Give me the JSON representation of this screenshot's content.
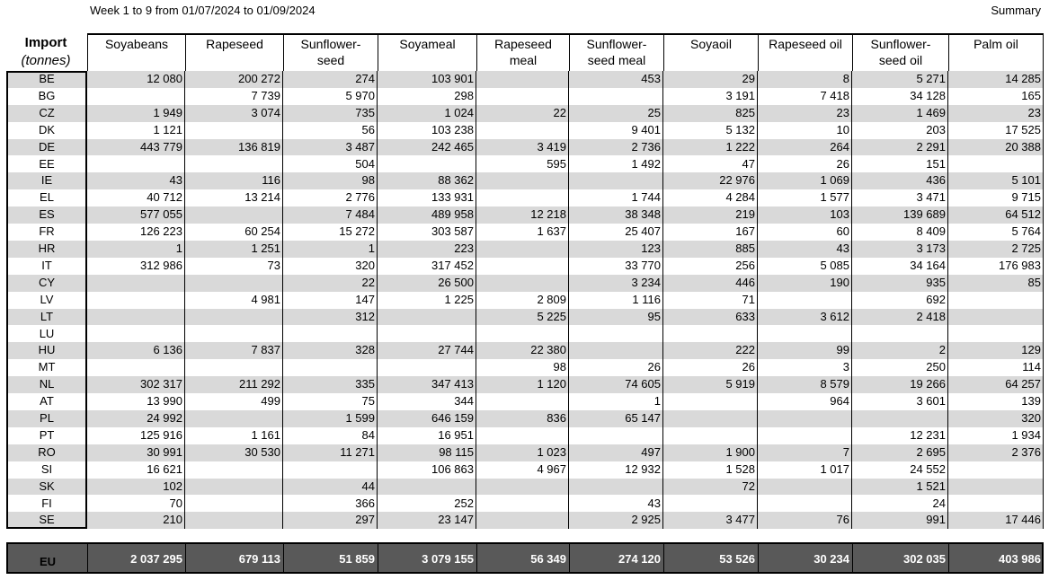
{
  "header": {
    "title": "Week 1 to 9 from 01/07/2024 to 01/09/2024",
    "summary": "Summary"
  },
  "import_label": {
    "line1": "Import",
    "line2": "(tonnes)"
  },
  "columns": [
    {
      "line1": "Soyabeans",
      "line2": ""
    },
    {
      "line1": "Rapeseed",
      "line2": ""
    },
    {
      "line1": "Sunflower-",
      "line2": "seed"
    },
    {
      "line1": "Soyameal",
      "line2": ""
    },
    {
      "line1": "Rapeseed",
      "line2": "meal"
    },
    {
      "line1": "Sunflower-",
      "line2": "seed meal"
    },
    {
      "line1": "Soyaoil",
      "line2": ""
    },
    {
      "line1": "Rapeseed oil",
      "line2": ""
    },
    {
      "line1": "Sunflower-",
      "line2": "seed oil"
    },
    {
      "line1": "Palm oil",
      "line2": ""
    }
  ],
  "rows": [
    {
      "country": "BE",
      "values": [
        "12 080",
        "200 272",
        "274",
        "103 901",
        "",
        "453",
        "29",
        "8",
        "5 271",
        "14 285"
      ]
    },
    {
      "country": "BG",
      "values": [
        "",
        "7 739",
        "5 970",
        "298",
        "",
        "",
        "3 191",
        "7 418",
        "34 128",
        "165"
      ]
    },
    {
      "country": "CZ",
      "values": [
        "1 949",
        "3 074",
        "735",
        "1 024",
        "22",
        "25",
        "825",
        "23",
        "1 469",
        "23"
      ]
    },
    {
      "country": "DK",
      "values": [
        "1 121",
        "",
        "56",
        "103 238",
        "",
        "9 401",
        "5 132",
        "10",
        "203",
        "17 525"
      ]
    },
    {
      "country": "DE",
      "values": [
        "443 779",
        "136 819",
        "3 487",
        "242 465",
        "3 419",
        "2 736",
        "1 222",
        "264",
        "2 291",
        "20 388"
      ]
    },
    {
      "country": "EE",
      "values": [
        "",
        "",
        "504",
        "",
        "595",
        "1 492",
        "47",
        "26",
        "151",
        ""
      ]
    },
    {
      "country": "IE",
      "values": [
        "43",
        "116",
        "98",
        "88 362",
        "",
        "",
        "22 976",
        "1 069",
        "436",
        "5 101"
      ]
    },
    {
      "country": "EL",
      "values": [
        "40 712",
        "13 214",
        "2 776",
        "133 931",
        "",
        "1 744",
        "4 284",
        "1 577",
        "3 471",
        "9 715"
      ]
    },
    {
      "country": "ES",
      "values": [
        "577 055",
        "",
        "7 484",
        "489 958",
        "12 218",
        "38 348",
        "219",
        "103",
        "139 689",
        "64 512"
      ]
    },
    {
      "country": "FR",
      "values": [
        "126 223",
        "60 254",
        "15 272",
        "303 587",
        "1 637",
        "25 407",
        "167",
        "60",
        "8 409",
        "5 764"
      ]
    },
    {
      "country": "HR",
      "values": [
        "1",
        "1 251",
        "1",
        "223",
        "",
        "123",
        "885",
        "43",
        "3 173",
        "2 725"
      ]
    },
    {
      "country": "IT",
      "values": [
        "312 986",
        "73",
        "320",
        "317 452",
        "",
        "33 770",
        "256",
        "5 085",
        "34 164",
        "176 983"
      ]
    },
    {
      "country": "CY",
      "values": [
        "",
        "",
        "22",
        "26 500",
        "",
        "3 234",
        "446",
        "190",
        "935",
        "85"
      ]
    },
    {
      "country": "LV",
      "values": [
        "",
        "4 981",
        "147",
        "1 225",
        "2 809",
        "1 116",
        "71",
        "",
        "692",
        ""
      ]
    },
    {
      "country": "LT",
      "values": [
        "",
        "",
        "312",
        "",
        "5 225",
        "95",
        "633",
        "3 612",
        "2 418",
        ""
      ]
    },
    {
      "country": "LU",
      "values": [
        "",
        "",
        "",
        "",
        "",
        "",
        "",
        "",
        "",
        ""
      ]
    },
    {
      "country": "HU",
      "values": [
        "6 136",
        "7 837",
        "328",
        "27 744",
        "22 380",
        "",
        "222",
        "99",
        "2",
        "129"
      ]
    },
    {
      "country": "MT",
      "values": [
        "",
        "",
        "",
        "",
        "98",
        "26",
        "26",
        "3",
        "250",
        "114"
      ]
    },
    {
      "country": "NL",
      "values": [
        "302 317",
        "211 292",
        "335",
        "347 413",
        "1 120",
        "74 605",
        "5 919",
        "8 579",
        "19 266",
        "64 257"
      ]
    },
    {
      "country": "AT",
      "values": [
        "13 990",
        "499",
        "75",
        "344",
        "",
        "1",
        "",
        "964",
        "3 601",
        "139"
      ]
    },
    {
      "country": "PL",
      "values": [
        "24 992",
        "",
        "1 599",
        "646 159",
        "836",
        "65 147",
        "",
        "",
        "",
        "320"
      ]
    },
    {
      "country": "PT",
      "values": [
        "125 916",
        "1 161",
        "84",
        "16 951",
        "",
        "",
        "",
        "",
        "12 231",
        "1 934"
      ]
    },
    {
      "country": "RO",
      "values": [
        "30 991",
        "30 530",
        "11 271",
        "98 115",
        "1 023",
        "497",
        "1 900",
        "7",
        "2 695",
        "2 376"
      ]
    },
    {
      "country": "SI",
      "values": [
        "16 621",
        "",
        "",
        "106 863",
        "4 967",
        "12 932",
        "1 528",
        "1 017",
        "24 552",
        ""
      ]
    },
    {
      "country": "SK",
      "values": [
        "102",
        "",
        "44",
        "",
        "",
        "",
        "72",
        "",
        "1 521",
        ""
      ]
    },
    {
      "country": "FI",
      "values": [
        "70",
        "",
        "366",
        "252",
        "",
        "43",
        "",
        "",
        "24",
        ""
      ]
    },
    {
      "country": "SE",
      "values": [
        "210",
        "",
        "297",
        "23 147",
        "",
        "2 925",
        "3 477",
        "76",
        "991",
        "17 446"
      ]
    }
  ],
  "total": {
    "label": "EU",
    "values": [
      "2 037 295",
      "679 113",
      "51 859",
      "3 079 155",
      "56 349",
      "274 120",
      "53 526",
      "30 234",
      "302 035",
      "403 986"
    ]
  },
  "colors": {
    "shade": "#d9d9d9",
    "total_bg": "#595959"
  }
}
